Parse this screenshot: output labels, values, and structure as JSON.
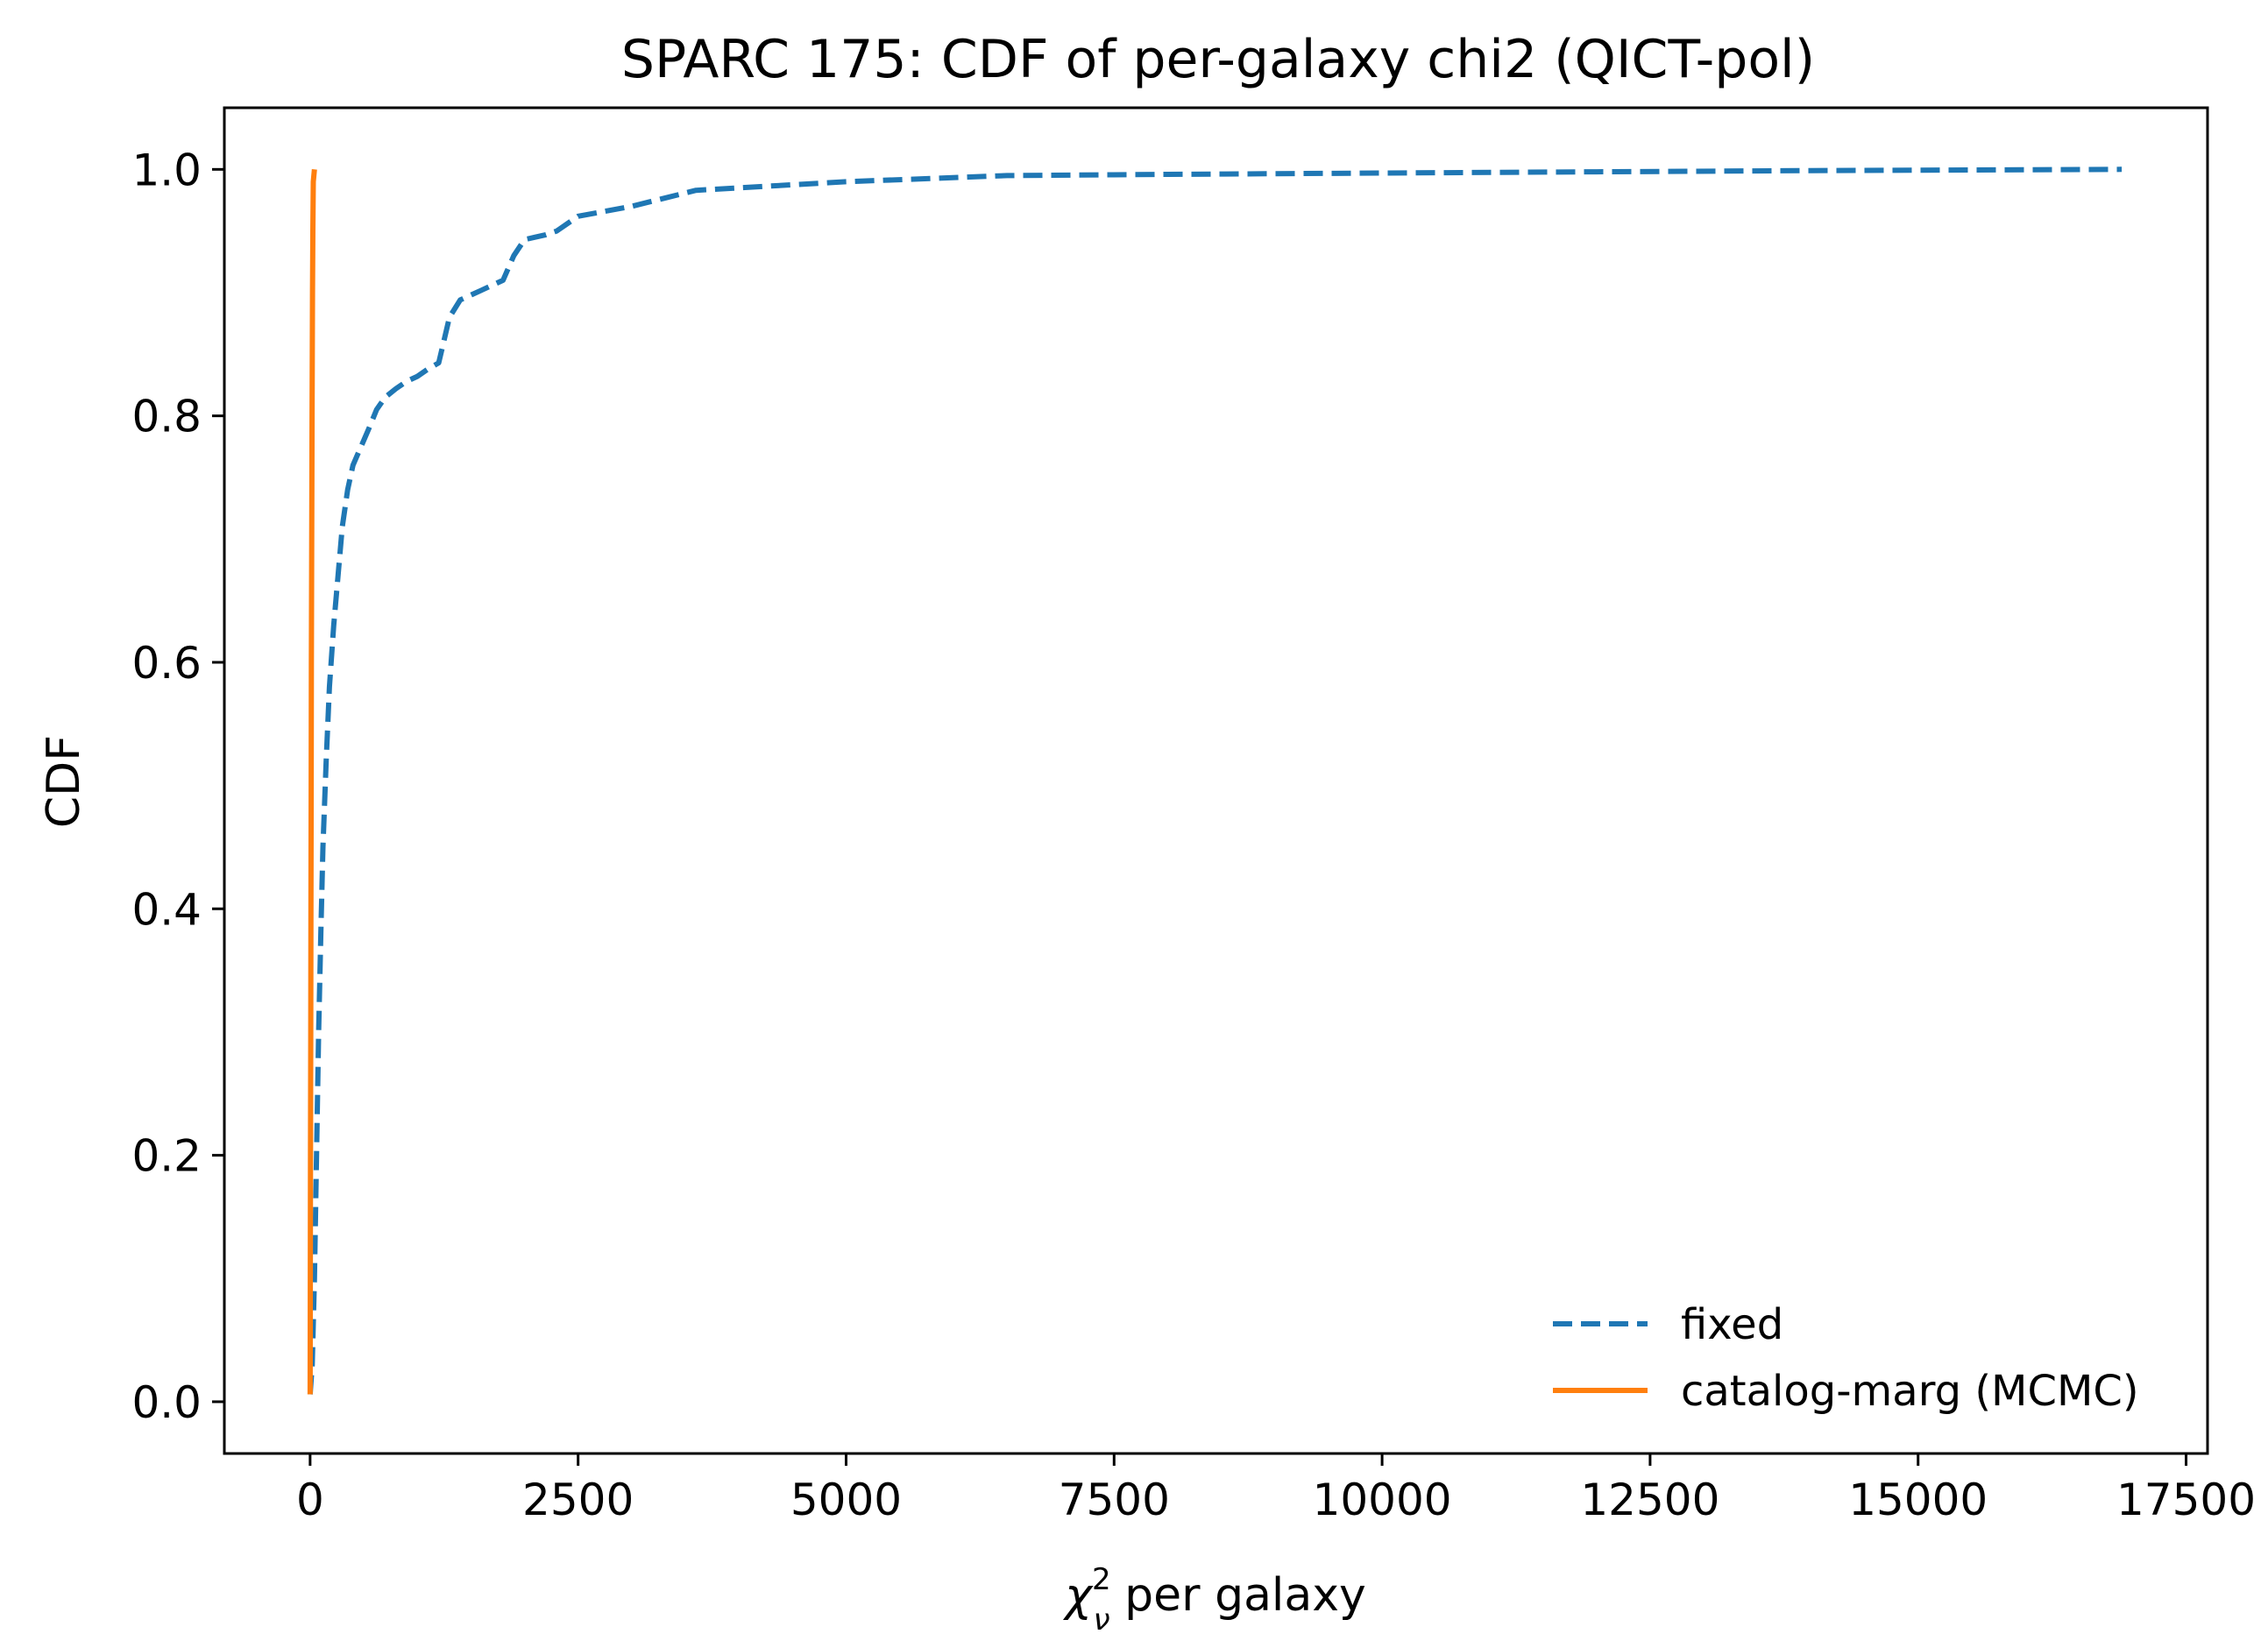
{
  "chart_data": {
    "type": "line",
    "title": "SPARC 175: CDF of per-galaxy chi2 (QICT-pol)",
    "xlabel_symbol": "χ",
    "xlabel_sup": "2",
    "xlabel_sub": "ν",
    "xlabel_rest": " per galaxy",
    "ylabel": "CDF",
    "xlim": [
      -800,
      17700
    ],
    "ylim": [
      -0.042,
      1.05
    ],
    "xticks": [
      0,
      2500,
      5000,
      7500,
      10000,
      12500,
      15000,
      17500
    ],
    "xtick_labels": [
      "0",
      "2500",
      "5000",
      "7500",
      "10000",
      "12500",
      "15000",
      "17500"
    ],
    "yticks": [
      0.0,
      0.2,
      0.4,
      0.6,
      0.8,
      1.0
    ],
    "ytick_labels": [
      "0.0",
      "0.2",
      "0.4",
      "0.6",
      "0.8",
      "1.0"
    ],
    "grid": false,
    "legend_position": "lower-right",
    "series": [
      {
        "name": "fixed",
        "color": "#1f77b4",
        "style": "dashed",
        "x": [
          0,
          20,
          40,
          60,
          80,
          100,
          120,
          150,
          180,
          220,
          260,
          300,
          350,
          400,
          450,
          500,
          550,
          620,
          700,
          800,
          900,
          1000,
          1100,
          1200,
          1300,
          1400,
          1500,
          1600,
          1700,
          1800,
          1900,
          2000,
          2100,
          2200,
          2300,
          2500,
          3000,
          3600,
          4000,
          5000,
          6500,
          8000,
          10000,
          12000,
          14000,
          16900
        ],
        "y": [
          0.006,
          0.03,
          0.1,
          0.2,
          0.3,
          0.38,
          0.45,
          0.52,
          0.58,
          0.63,
          0.67,
          0.71,
          0.74,
          0.76,
          0.77,
          0.78,
          0.79,
          0.805,
          0.815,
          0.822,
          0.828,
          0.832,
          0.838,
          0.843,
          0.88,
          0.894,
          0.898,
          0.902,
          0.906,
          0.91,
          0.93,
          0.943,
          0.945,
          0.947,
          0.95,
          0.962,
          0.97,
          0.983,
          0.985,
          0.99,
          0.995,
          0.996,
          0.997,
          0.998,
          0.999,
          1.0
        ]
      },
      {
        "name": "catalog-marg (MCMC)",
        "color": "#ff7f0e",
        "style": "solid",
        "x": [
          0,
          2,
          4,
          6,
          8,
          10,
          12,
          15,
          18,
          22,
          26,
          30,
          40
        ],
        "y": [
          0.006,
          0.1,
          0.2,
          0.3,
          0.4,
          0.5,
          0.6,
          0.7,
          0.8,
          0.9,
          0.95,
          0.99,
          1.0
        ]
      }
    ]
  }
}
